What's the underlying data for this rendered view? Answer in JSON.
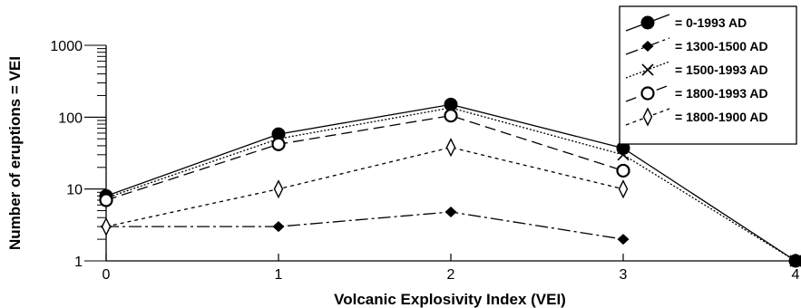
{
  "chart_data": {
    "type": "line",
    "xlabel": "Volcanic Explosivity Index (VEI)",
    "ylabel": "Number of eruptions = VEI",
    "x_ticks": [
      "0",
      "1",
      "2",
      "3",
      "4"
    ],
    "y_ticks": [
      "1",
      "10",
      "100",
      "1000"
    ],
    "xlim": [
      0,
      4
    ],
    "ylim": [
      1,
      1000
    ],
    "y_scale": "log",
    "legend_position": "top-right",
    "series": [
      {
        "name": "= 0-1993 AD",
        "marker": "filled-circle",
        "line": "solid",
        "x": [
          0,
          1,
          2,
          3,
          4
        ],
        "y": [
          8,
          58,
          150,
          37,
          1
        ]
      },
      {
        "name": "= 1300-1500 AD",
        "marker": "filled-diamond",
        "line": "dash-dot",
        "x": [
          0,
          1,
          2,
          3
        ],
        "y": [
          3,
          3,
          4.8,
          2
        ]
      },
      {
        "name": "= 1500-1993 AD",
        "marker": "x",
        "line": "dotted",
        "x": [
          0,
          1,
          2,
          3,
          4
        ],
        "y": [
          7.5,
          50,
          135,
          30,
          1
        ]
      },
      {
        "name": "= 1800-1993 AD",
        "marker": "open-circle",
        "line": "dashed",
        "x": [
          0,
          1,
          2,
          3
        ],
        "y": [
          7,
          42,
          105,
          18
        ]
      },
      {
        "name": "= 1800-1900 AD",
        "marker": "open-diamond",
        "line": "short-dashed",
        "x": [
          0,
          1,
          2,
          3
        ],
        "y": [
          3,
          10,
          38,
          10
        ]
      }
    ]
  }
}
